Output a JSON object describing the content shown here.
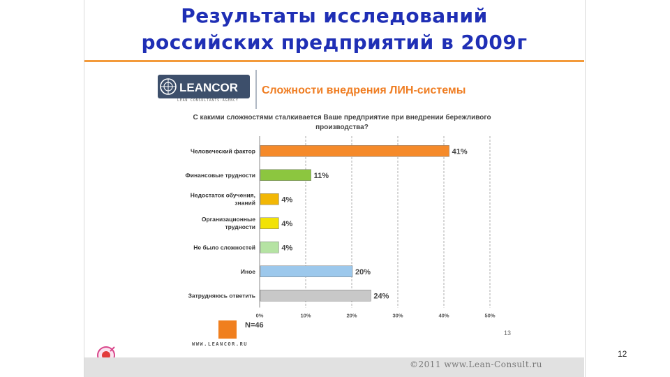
{
  "slide": {
    "title_line1": "Результаты исследований",
    "title_line2": "российских предприятий в 2009г",
    "page_number": "12",
    "footer": "©2011 www.Lean-Consult.ru"
  },
  "logo": {
    "name": "LEANCOR",
    "tagline": "LEAN CONSULTANTS·AGENCY",
    "website": "WWW.LEANCOR.RU"
  },
  "chart_data": {
    "type": "bar",
    "orientation": "horizontal",
    "title": "Сложности внедрения ЛИН-системы",
    "question": "С какими сложностями сталкивается Ваше предприятие при внедрении бережливого производства?",
    "categories": [
      "Человеческий фактор",
      "Финансовые трудности",
      "Недостаток обучения, знаний",
      "Организационные трудности",
      "Не было сложностей",
      "Иное",
      "Затрудняюсь ответить"
    ],
    "values": [
      41,
      11,
      4,
      4,
      4,
      20,
      24
    ],
    "value_labels": [
      "41%",
      "11%",
      "4%",
      "4%",
      "4%",
      "20%",
      "24%"
    ],
    "colors": [
      "#f58a2a",
      "#8cc63f",
      "#f2b705",
      "#f2e205",
      "#b5e3a3",
      "#9cc8ec",
      "#c8c8c8"
    ],
    "xlim": [
      0,
      50
    ],
    "xticks": [
      "0%",
      "10%",
      "20%",
      "30%",
      "40%",
      "50%"
    ],
    "grid": true,
    "sample": "N=46",
    "inner_page": "13"
  }
}
